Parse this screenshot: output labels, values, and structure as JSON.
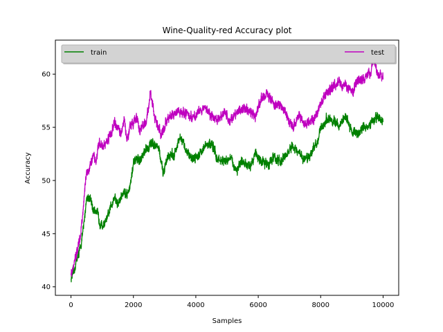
{
  "chart_data": {
    "type": "line",
    "title": "Wine-Quality-red Accuracy plot",
    "xlabel": "Samples",
    "ylabel": "Accuracy",
    "xlim": [
      -500,
      10500
    ],
    "ylim": [
      39.2,
      63.2
    ],
    "xticks": [
      0,
      2000,
      4000,
      6000,
      8000,
      10000
    ],
    "yticks": [
      40,
      45,
      50,
      55,
      60
    ],
    "legend_placement": "top, spanning full width",
    "grid": false,
    "series": [
      {
        "name": "train",
        "color": "#008000",
        "x": [
          0,
          100,
          200,
          300,
          400,
          500,
          600,
          700,
          800,
          900,
          1000,
          1100,
          1200,
          1300,
          1400,
          1500,
          1600,
          1700,
          1800,
          1900,
          2000,
          2100,
          2200,
          2400,
          2600,
          2800,
          2950,
          3100,
          3300,
          3500,
          3700,
          3900,
          4100,
          4300,
          4500,
          4700,
          4900,
          5100,
          5300,
          5500,
          5700,
          5900,
          6100,
          6300,
          6500,
          6700,
          6900,
          7100,
          7300,
          7500,
          7700,
          7900,
          8000,
          8200,
          8400,
          8600,
          8800,
          9000,
          9200,
          9400,
          9600,
          9800,
          10000
        ],
        "values": [
          40.8,
          41.5,
          42.8,
          43.6,
          45.5,
          48.4,
          48.5,
          47.2,
          47.3,
          46.3,
          45.7,
          46.0,
          46.7,
          47.8,
          48.5,
          47.7,
          48.4,
          49.0,
          48.7,
          49.6,
          51.5,
          52.0,
          51.8,
          52.8,
          53.6,
          53.2,
          50.6,
          52.3,
          52.4,
          54.0,
          52.8,
          52.0,
          52.5,
          53.2,
          53.5,
          52.0,
          51.8,
          52.1,
          51.0,
          51.7,
          51.2,
          52.6,
          51.7,
          51.5,
          52.2,
          51.7,
          52.4,
          53.2,
          52.5,
          51.9,
          52.6,
          53.8,
          54.8,
          55.8,
          55.6,
          55.1,
          56.1,
          54.6,
          54.4,
          55.0,
          55.3,
          56.0,
          55.5
        ]
      },
      {
        "name": "test",
        "color": "#bf00bf",
        "x": [
          0,
          100,
          200,
          300,
          400,
          500,
          600,
          700,
          800,
          900,
          1000,
          1100,
          1200,
          1300,
          1400,
          1500,
          1600,
          1700,
          1800,
          1900,
          2000,
          2100,
          2200,
          2400,
          2550,
          2700,
          2900,
          3100,
          3300,
          3500,
          3700,
          3900,
          4100,
          4300,
          4500,
          4700,
          4900,
          5100,
          5300,
          5500,
          5700,
          5900,
          6100,
          6300,
          6500,
          6700,
          6900,
          7100,
          7300,
          7500,
          7700,
          7900,
          8000,
          8200,
          8400,
          8600,
          8800,
          9000,
          9200,
          9400,
          9600,
          9700,
          9800,
          10000
        ],
        "values": [
          41.2,
          42.3,
          43.6,
          44.7,
          47.6,
          51.0,
          51.3,
          52.5,
          51.8,
          53.6,
          53.1,
          53.5,
          53.8,
          54.6,
          55.6,
          54.8,
          54.3,
          55.7,
          53.8,
          55.3,
          55.4,
          55.9,
          54.7,
          55.4,
          58.2,
          55.8,
          54.3,
          55.8,
          56.2,
          56.5,
          56.3,
          55.9,
          56.4,
          57.0,
          56.0,
          55.8,
          56.5,
          55.6,
          56.3,
          56.8,
          56.7,
          55.9,
          57.8,
          58.1,
          57.0,
          57.2,
          56.2,
          55.0,
          56.0,
          55.3,
          55.6,
          56.4,
          57.2,
          58.4,
          58.7,
          59.3,
          58.9,
          58.4,
          59.3,
          59.7,
          60.3,
          61.6,
          60.2,
          59.5
        ]
      }
    ]
  }
}
